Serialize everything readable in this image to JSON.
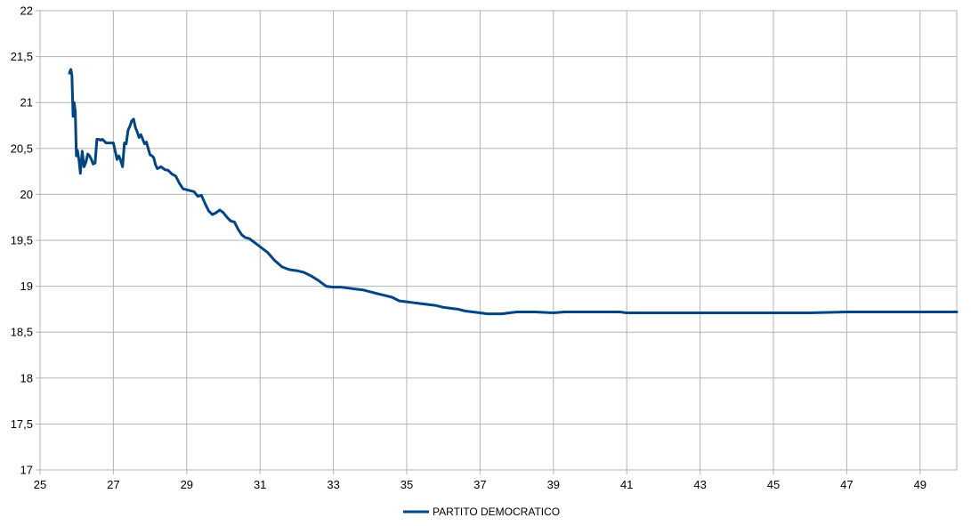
{
  "chart_data": {
    "type": "line",
    "title": "",
    "xlabel": "",
    "ylabel": "",
    "xlim": [
      25,
      50
    ],
    "ylim": [
      17,
      22
    ],
    "x_ticks": [
      25,
      27,
      29,
      31,
      33,
      35,
      37,
      39,
      41,
      43,
      45,
      47,
      49
    ],
    "x_tick_labels": [
      "25",
      "27",
      "29",
      "31",
      "33",
      "35",
      "37",
      "39",
      "41",
      "43",
      "45",
      "47",
      "49"
    ],
    "y_ticks": [
      17,
      17.5,
      18,
      18.5,
      19,
      19.5,
      20,
      20.5,
      21,
      21.5,
      22
    ],
    "y_tick_labels": [
      "17",
      "17,5",
      "18",
      "18,5",
      "19",
      "19,5",
      "20",
      "20,5",
      "21",
      "21,5",
      "22"
    ],
    "grid": true,
    "legend_position": "bottom-center",
    "series": [
      {
        "name": "PARTITO DEMOCRATICO",
        "color": "#004586",
        "x": [
          25.8,
          25.84,
          25.87,
          25.9,
          25.93,
          25.96,
          25.99,
          26.02,
          26.06,
          26.1,
          26.15,
          26.2,
          26.25,
          26.3,
          26.35,
          26.4,
          26.45,
          26.5,
          26.55,
          26.6,
          26.65,
          26.7,
          26.8,
          26.9,
          27.0,
          27.1,
          27.15,
          27.2,
          27.25,
          27.3,
          27.35,
          27.4,
          27.45,
          27.5,
          27.55,
          27.6,
          27.65,
          27.7,
          27.75,
          27.8,
          27.85,
          27.9,
          27.95,
          28.0,
          28.05,
          28.1,
          28.15,
          28.2,
          28.3,
          28.4,
          28.5,
          28.6,
          28.7,
          28.8,
          28.9,
          29.0,
          29.1,
          29.2,
          29.3,
          29.4,
          29.5,
          29.6,
          29.7,
          29.8,
          29.9,
          30.0,
          30.1,
          30.2,
          30.3,
          30.4,
          30.5,
          30.6,
          30.7,
          30.8,
          30.9,
          31.0,
          31.2,
          31.4,
          31.6,
          31.8,
          32.0,
          32.2,
          32.4,
          32.6,
          32.8,
          33.0,
          33.2,
          33.4,
          33.6,
          33.8,
          34.0,
          34.2,
          34.4,
          34.6,
          34.8,
          35.0,
          35.2,
          35.4,
          35.6,
          35.8,
          36.0,
          36.2,
          36.4,
          36.6,
          36.8,
          37.0,
          37.2,
          37.4,
          37.6,
          37.8,
          38.0,
          38.5,
          39.0,
          39.3,
          39.4,
          39.5,
          39.7,
          40.0,
          40.5,
          40.8,
          41.0,
          41.2,
          41.5,
          42.0,
          43.0,
          44.0,
          45.0,
          45.4,
          45.6,
          46.0,
          47.0,
          48.0,
          49.0,
          50.0
        ],
        "values": [
          21.32,
          21.36,
          21.3,
          20.85,
          21.0,
          20.9,
          20.42,
          20.48,
          20.38,
          20.23,
          20.47,
          20.3,
          20.35,
          20.44,
          20.42,
          20.38,
          20.33,
          20.34,
          20.6,
          20.6,
          20.59,
          20.6,
          20.56,
          20.56,
          20.56,
          20.38,
          20.42,
          20.37,
          20.3,
          20.56,
          20.55,
          20.7,
          20.74,
          20.8,
          20.82,
          20.73,
          20.68,
          20.62,
          20.65,
          20.6,
          20.55,
          20.57,
          20.5,
          20.43,
          20.42,
          20.4,
          20.32,
          20.28,
          20.3,
          20.27,
          20.26,
          20.22,
          20.2,
          20.12,
          20.06,
          20.05,
          20.04,
          20.03,
          19.98,
          19.99,
          19.9,
          19.82,
          19.78,
          19.8,
          19.83,
          19.8,
          19.75,
          19.71,
          19.7,
          19.62,
          19.56,
          19.53,
          19.52,
          19.49,
          19.46,
          19.43,
          19.37,
          19.28,
          19.21,
          19.18,
          19.17,
          19.15,
          19.11,
          19.06,
          19.0,
          18.99,
          18.99,
          18.98,
          18.97,
          18.96,
          18.94,
          18.92,
          18.9,
          18.88,
          18.84,
          18.83,
          18.82,
          18.81,
          18.8,
          18.79,
          18.77,
          18.76,
          18.75,
          18.73,
          18.72,
          18.71,
          18.7,
          18.7,
          18.7,
          18.71,
          18.72,
          18.72,
          18.71,
          18.72,
          18.72,
          18.72,
          18.72,
          18.72,
          18.72,
          18.72,
          18.71,
          18.71,
          18.71,
          18.71,
          18.71,
          18.71,
          18.71,
          18.71,
          18.71,
          18.71,
          18.72,
          18.72,
          18.72,
          18.72
        ]
      }
    ]
  }
}
